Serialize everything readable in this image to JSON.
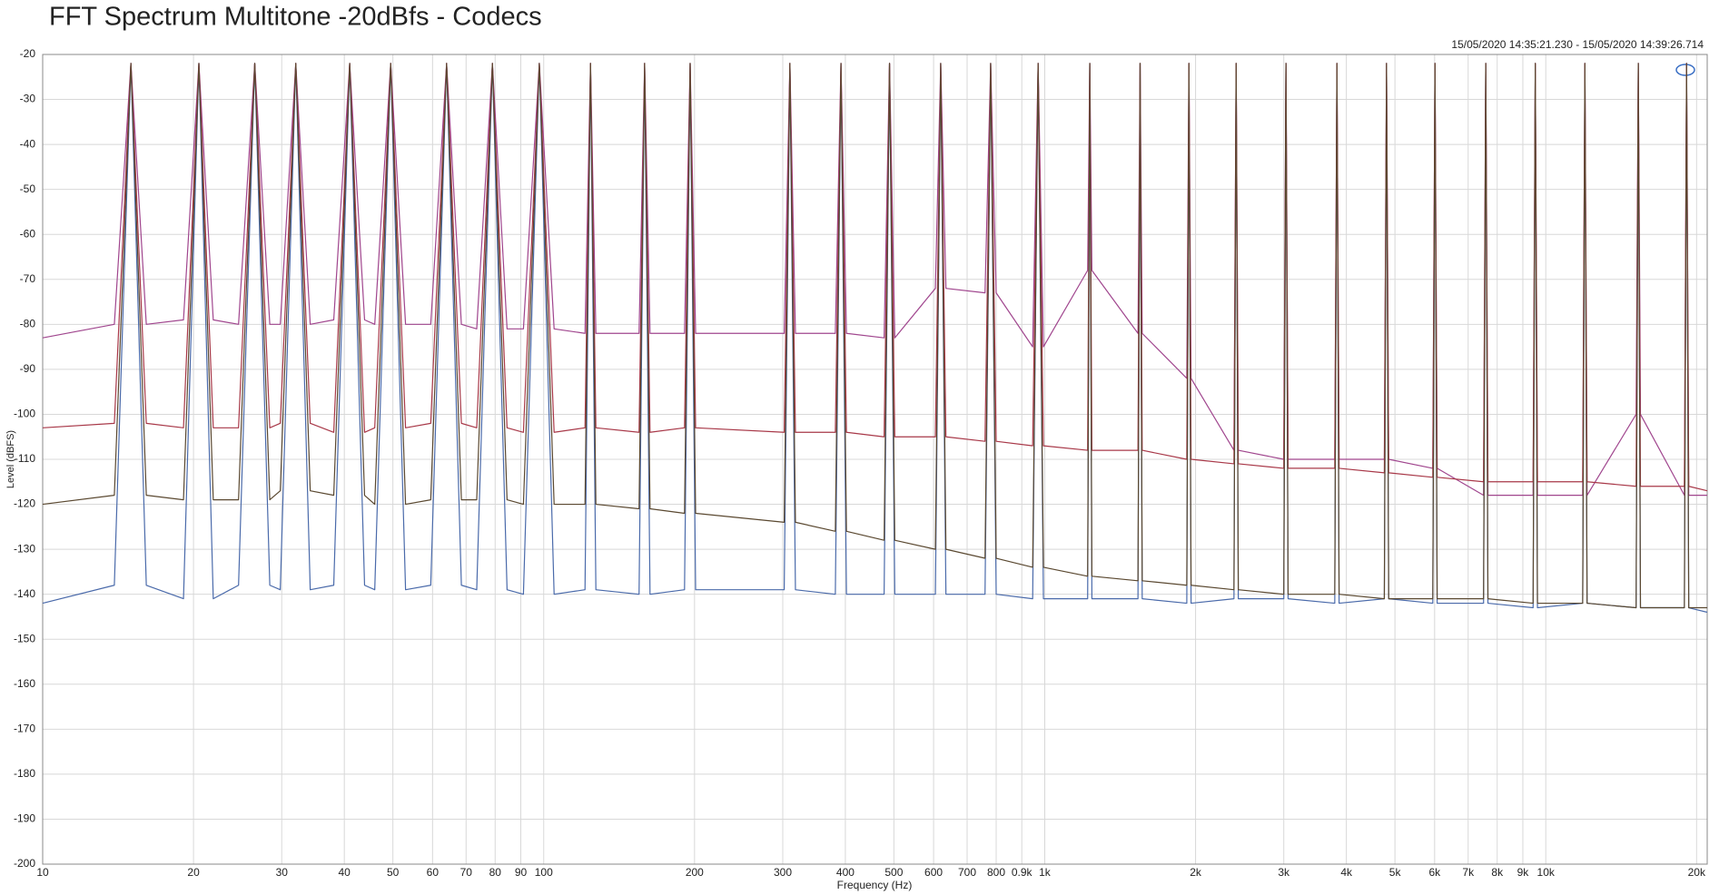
{
  "chart_data": {
    "type": "line",
    "title": "FFT Spectrum Multitone -20dBfs - Codecs",
    "subtitle": "15/05/2020 14:35:21.230 - 15/05/2020 14:39:26.714",
    "x_label": "Frequency (Hz)",
    "y_label": "Level (dBFS)",
    "x_scale": "log",
    "grid": true,
    "xlim": [
      10,
      21000
    ],
    "ylim": [
      -200,
      -20
    ],
    "xticks": [
      10,
      20,
      30,
      40,
      50,
      60,
      70,
      80,
      90,
      100,
      200,
      300,
      400,
      500,
      600,
      700,
      800,
      {
        "value": 900,
        "label": "0.9k"
      },
      {
        "value": 1000,
        "label": "1k"
      },
      {
        "value": 2000,
        "label": "2k"
      },
      {
        "value": 3000,
        "label": "3k"
      },
      {
        "value": 4000,
        "label": "4k"
      },
      {
        "value": 5000,
        "label": "5k"
      },
      {
        "value": 6000,
        "label": "6k"
      },
      {
        "value": 7000,
        "label": "7k"
      },
      {
        "value": 8000,
        "label": "8k"
      },
      {
        "value": 9000,
        "label": "9k"
      },
      {
        "value": 10000,
        "label": "10k"
      },
      {
        "value": 20000,
        "label": "20k"
      }
    ],
    "yticks": [
      -20,
      -30,
      -40,
      -50,
      -60,
      -70,
      -80,
      -90,
      -100,
      -110,
      -120,
      -130,
      -140,
      -150,
      -160,
      -170,
      -180,
      -190,
      -200
    ],
    "x": [
      10,
      13.9,
      15,
      16.1,
      19.1,
      20.5,
      21.9,
      24.6,
      26.5,
      28.4,
      29.8,
      32,
      34.2,
      38.1,
      41,
      43.9,
      46,
      49.5,
      53,
      59.5,
      64,
      68.5,
      73.5,
      79,
      84.5,
      91.1,
      98,
      104.9,
      120.9,
      124,
      127.1,
      155,
      159,
      163,
      191,
      196,
      201,
      302,
      310,
      318,
      382,
      392,
      402,
      478,
      490,
      502,
      605,
      620,
      635,
      760,
      780,
      800,
      946,
      970,
      994,
      1218,
      1230,
      1242,
      1535,
      1550,
      1565,
      1921,
      1940,
      1959,
      2386,
      2410,
      2434,
      3000,
      3030,
      3060,
      3792,
      3830,
      3868,
      4762,
      4810,
      4858,
      5950,
      6010,
      6070,
      7514,
      7590,
      7666,
      9435,
      9530,
      9625,
      11850,
      11970,
      12090,
      15147,
      15300,
      15453,
      18909,
      19100,
      19291,
      21000
    ],
    "series": [
      {
        "color": "#4a6aaa",
        "values": [
          -142,
          -138,
          -22,
          -138,
          -141,
          -22,
          -141,
          -138,
          -22,
          -138,
          -139,
          -22,
          -139,
          -138,
          -22,
          -138,
          -139,
          -22,
          -139,
          -138,
          -22,
          -138,
          -139,
          -22,
          -139,
          -140,
          -22,
          -140,
          -139,
          -22,
          -139,
          -140,
          -22,
          -140,
          -139,
          -22,
          -139,
          -139,
          -22,
          -139,
          -140,
          -22,
          -140,
          -140,
          -22,
          -140,
          -140,
          -22,
          -140,
          -140,
          -22,
          -140,
          -141,
          -22,
          -141,
          -141,
          -22,
          -141,
          -141,
          -22,
          -141,
          -142,
          -22,
          -142,
          -141,
          -22,
          -141,
          -141,
          -22,
          -141,
          -142,
          -22,
          -142,
          -141,
          -22,
          -141,
          -142,
          -22,
          -142,
          -142,
          -22,
          -142,
          -143,
          -22,
          -143,
          -142,
          -22,
          -142,
          -143,
          -22,
          -143,
          -143,
          -22,
          -143,
          -144
        ]
      },
      {
        "color": "#a0468e",
        "values": [
          -83,
          -80,
          -22,
          -80,
          -79,
          -22,
          -79,
          -80,
          -22,
          -80,
          -80,
          -22,
          -80,
          -79,
          -22,
          -79,
          -80,
          -22,
          -80,
          -80,
          -22,
          -80,
          -81,
          -22,
          -81,
          -81,
          -22,
          -81,
          -82,
          -22,
          -82,
          -82,
          -22,
          -82,
          -82,
          -22,
          -82,
          -82,
          -22,
          -82,
          -82,
          -22,
          -82,
          -83,
          -22,
          -83,
          -72,
          -22,
          -72,
          -73,
          -22,
          -73,
          -85,
          -22,
          -85,
          -68,
          -22,
          -68,
          -82,
          -22,
          -82,
          -92,
          -22,
          -92,
          -108,
          -22,
          -108,
          -110,
          -22,
          -110,
          -110,
          -22,
          -110,
          -110,
          -22,
          -110,
          -112,
          -22,
          -112,
          -118,
          -22,
          -118,
          -118,
          -22,
          -118,
          -118,
          -22,
          -118,
          -100,
          -22,
          -100,
          -118,
          -22,
          -118,
          -118
        ]
      },
      {
        "color": "#a83848",
        "values": [
          -103,
          -102,
          -22,
          -102,
          -103,
          -22,
          -103,
          -103,
          -22,
          -103,
          -102,
          -22,
          -102,
          -104,
          -22,
          -104,
          -103,
          -22,
          -103,
          -102,
          -22,
          -102,
          -103,
          -22,
          -103,
          -104,
          -22,
          -104,
          -103,
          -22,
          -103,
          -104,
          -22,
          -104,
          -103,
          -22,
          -103,
          -104,
          -22,
          -104,
          -104,
          -22,
          -104,
          -105,
          -22,
          -105,
          -105,
          -22,
          -105,
          -106,
          -22,
          -106,
          -107,
          -22,
          -107,
          -108,
          -22,
          -108,
          -108,
          -22,
          -108,
          -110,
          -22,
          -110,
          -111,
          -22,
          -111,
          -112,
          -22,
          -112,
          -112,
          -22,
          -112,
          -113,
          -22,
          -113,
          -114,
          -22,
          -114,
          -115,
          -22,
          -115,
          -115,
          -22,
          -115,
          -115,
          -22,
          -115,
          -116,
          -22,
          -116,
          -116,
          -22,
          -116,
          -117
        ]
      },
      {
        "color": "#5a4830",
        "values": [
          -120,
          -118,
          -22,
          -118,
          -119,
          -22,
          -119,
          -119,
          -22,
          -119,
          -117,
          -22,
          -117,
          -118,
          -22,
          -118,
          -120,
          -22,
          -120,
          -119,
          -22,
          -119,
          -119,
          -22,
          -119,
          -120,
          -22,
          -120,
          -120,
          -22,
          -120,
          -121,
          -22,
          -121,
          -122,
          -22,
          -122,
          -124,
          -22,
          -124,
          -126,
          -22,
          -126,
          -128,
          -22,
          -128,
          -130,
          -22,
          -130,
          -132,
          -22,
          -132,
          -134,
          -22,
          -134,
          -136,
          -22,
          -136,
          -137,
          -22,
          -137,
          -138,
          -22,
          -138,
          -139,
          -22,
          -139,
          -140,
          -22,
          -140,
          -140,
          -22,
          -140,
          -141,
          -22,
          -141,
          -141,
          -22,
          -141,
          -141,
          -22,
          -141,
          -142,
          -22,
          -142,
          -142,
          -22,
          -142,
          -143,
          -22,
          -143,
          -143,
          -22,
          -143,
          -143
        ]
      }
    ]
  }
}
